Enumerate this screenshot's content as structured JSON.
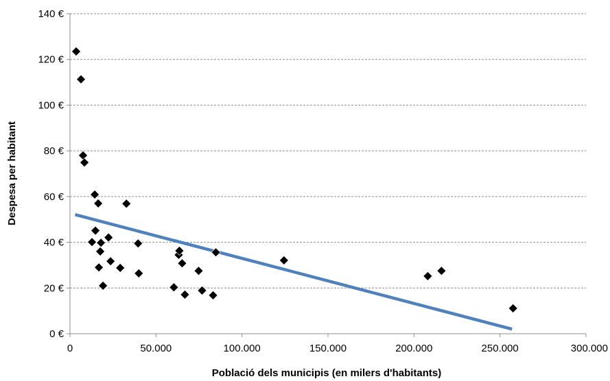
{
  "chart_data": {
    "type": "scatter",
    "title": "",
    "xlabel": "Població dels municipis (en milers d'habitants)",
    "ylabel": "Despesa per habitant",
    "xlim": [
      0,
      300000
    ],
    "ylim": [
      0,
      140
    ],
    "x_ticks": [
      0,
      50000,
      100000,
      150000,
      200000,
      250000,
      300000
    ],
    "x_tick_labels": [
      "0",
      "50.000",
      "100.000",
      "150.000",
      "200.000",
      "250.000",
      "300.000"
    ],
    "y_ticks": [
      0,
      20,
      40,
      60,
      80,
      100,
      120,
      140
    ],
    "y_tick_labels": [
      "0 €",
      "20 €",
      "40 €",
      "60 €",
      "80 €",
      "100 €",
      "120 €",
      "140 €"
    ],
    "grid": {
      "horizontal": true,
      "style": "dashed"
    },
    "legend": "none",
    "marker": {
      "shape": "diamond",
      "color": "#000000"
    },
    "points": [
      {
        "x": 3600,
        "y": 123.5
      },
      {
        "x": 6400,
        "y": 111.3
      },
      {
        "x": 7600,
        "y": 78.0
      },
      {
        "x": 8400,
        "y": 74.9
      },
      {
        "x": 12800,
        "y": 40.1
      },
      {
        "x": 14400,
        "y": 60.9
      },
      {
        "x": 14800,
        "y": 45.1
      },
      {
        "x": 16400,
        "y": 57.0
      },
      {
        "x": 16800,
        "y": 29.0
      },
      {
        "x": 17600,
        "y": 36.0
      },
      {
        "x": 18000,
        "y": 39.8
      },
      {
        "x": 19200,
        "y": 21.0
      },
      {
        "x": 22400,
        "y": 42.1
      },
      {
        "x": 23600,
        "y": 31.7
      },
      {
        "x": 29200,
        "y": 28.8
      },
      {
        "x": 32800,
        "y": 56.9
      },
      {
        "x": 39600,
        "y": 39.5
      },
      {
        "x": 40000,
        "y": 26.4
      },
      {
        "x": 60400,
        "y": 20.3
      },
      {
        "x": 63200,
        "y": 34.5
      },
      {
        "x": 63600,
        "y": 36.3
      },
      {
        "x": 65200,
        "y": 30.8
      },
      {
        "x": 66800,
        "y": 17.1
      },
      {
        "x": 74800,
        "y": 27.5
      },
      {
        "x": 76800,
        "y": 18.9
      },
      {
        "x": 83200,
        "y": 16.8
      },
      {
        "x": 84800,
        "y": 35.6
      },
      {
        "x": 124400,
        "y": 32.1
      },
      {
        "x": 208000,
        "y": 25.2
      },
      {
        "x": 216000,
        "y": 27.5
      },
      {
        "x": 257600,
        "y": 11.1
      }
    ],
    "trendline": {
      "type": "linear",
      "color": "#4f81bd",
      "start": {
        "x": 3000,
        "y": 52.1
      },
      "end": {
        "x": 257000,
        "y": 2.0
      }
    }
  }
}
